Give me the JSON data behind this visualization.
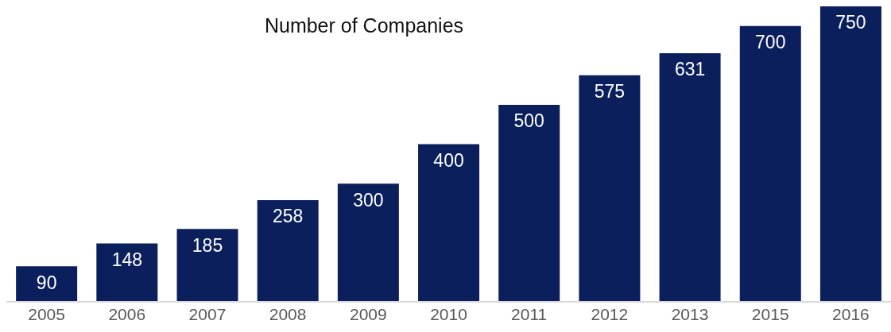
{
  "chart_data": {
    "type": "bar",
    "title": "Number of Companies",
    "categories": [
      "2005",
      "2006",
      "2007",
      "2008",
      "2009",
      "2010",
      "2011",
      "2012",
      "2013",
      "2015",
      "2016"
    ],
    "values": [
      90,
      148,
      185,
      258,
      300,
      400,
      500,
      575,
      631,
      700,
      750
    ],
    "color": "#0b1f5c",
    "data_labels": true,
    "grid": false,
    "legend": false
  }
}
